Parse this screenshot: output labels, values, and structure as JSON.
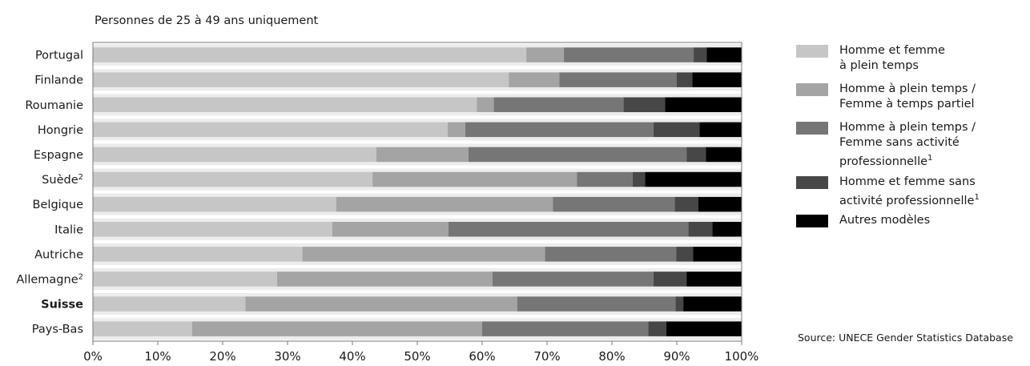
{
  "chart_data": {
    "type": "bar",
    "orientation": "horizontal",
    "stacked": true,
    "subtitle": "Personnes de 25 à 49 ans uniquement",
    "categories": [
      {
        "name": "Portugal",
        "sup": ""
      },
      {
        "name": "Finlande",
        "sup": ""
      },
      {
        "name": "Roumanie",
        "sup": ""
      },
      {
        "name": "Hongrie",
        "sup": ""
      },
      {
        "name": "Espagne",
        "sup": ""
      },
      {
        "name": "Suède",
        "sup": "2"
      },
      {
        "name": "Belgique",
        "sup": ""
      },
      {
        "name": "Italie",
        "sup": ""
      },
      {
        "name": "Autriche",
        "sup": ""
      },
      {
        "name": "Allemagne",
        "sup": "2"
      },
      {
        "name": "Suisse",
        "sup": "",
        "bold": true
      },
      {
        "name": "Pays-Bas",
        "sup": ""
      }
    ],
    "series": [
      {
        "name": "Homme et femme à plein temps",
        "label_lines": [
          "Homme et femme",
          "à plein temps"
        ],
        "sup": "",
        "color": "#c6c6c6",
        "values": [
          66.8,
          64.1,
          59.2,
          54.7,
          43.7,
          43.1,
          37.5,
          36.9,
          32.3,
          28.4,
          23.5,
          15.3
        ]
      },
      {
        "name": "Homme à plein temps / Femme à temps partiel",
        "label_lines": [
          "Homme à plein temps /",
          "Femme à temps partiel"
        ],
        "sup": "",
        "color": "#a4a4a4",
        "values": [
          5.8,
          7.8,
          2.6,
          2.7,
          14.2,
          31.5,
          33.4,
          17.9,
          37.4,
          33.2,
          41.9,
          44.7
        ]
      },
      {
        "name": "Homme à plein temps / Femme sans activité professionnelle",
        "label_lines": [
          "Homme à plein temps /",
          "Femme sans activité",
          "professionnelle"
        ],
        "sup": "1",
        "color": "#767676",
        "values": [
          20.0,
          18.1,
          20.0,
          29.0,
          33.6,
          8.6,
          18.8,
          37.0,
          20.2,
          24.8,
          24.4,
          25.6
        ]
      },
      {
        "name": "Homme et femme sans activité professionnelle",
        "label_lines": [
          "Homme et femme sans",
          "activité professionnelle"
        ],
        "sup": "1",
        "color": "#474747",
        "values": [
          2.0,
          2.4,
          6.4,
          7.1,
          3.0,
          1.9,
          3.6,
          3.7,
          2.6,
          5.1,
          1.2,
          2.8
        ]
      },
      {
        "name": "Autres modèles",
        "label_lines": [
          "Autres modèles"
        ],
        "sup": "",
        "color": "#000000",
        "values": [
          5.4,
          7.6,
          11.8,
          6.5,
          5.5,
          14.9,
          6.7,
          4.5,
          7.5,
          8.5,
          9.0,
          11.6
        ]
      }
    ],
    "xlim": [
      0,
      100
    ],
    "xticks": [
      "0%",
      "10%",
      "20%",
      "30%",
      "40%",
      "50%",
      "60%",
      "70%",
      "80%",
      "90%",
      "100%"
    ],
    "grid": false,
    "legend_position": "right",
    "colors": {
      "row_band": "#ececec",
      "frame": "#7a7a7a"
    }
  },
  "source": "Source: UNECE Gender Statistics Database"
}
